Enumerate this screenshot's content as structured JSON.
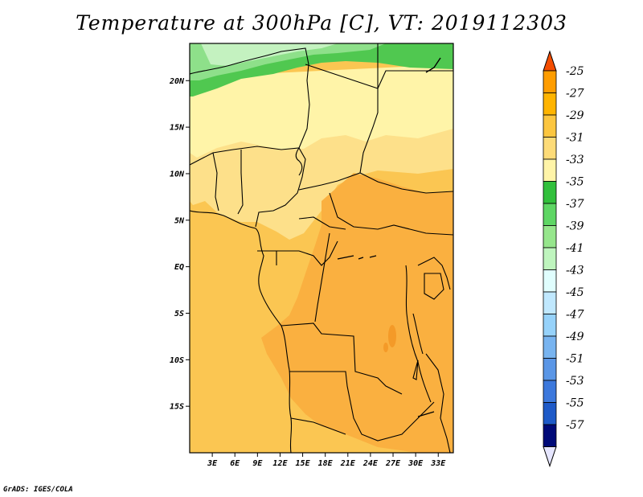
{
  "title": "Temperature at 300hPa [C], VT: 2019112303",
  "credit": "GrADS: IGES/COLA",
  "map": {
    "projection": "latlon",
    "lon_range": [
      0,
      35
    ],
    "lat_range": [
      -20,
      24
    ],
    "lat_ticks": [
      {
        "value": 20,
        "label": "20N"
      },
      {
        "value": 15,
        "label": "15N"
      },
      {
        "value": 10,
        "label": "10N"
      },
      {
        "value": 5,
        "label": "5N"
      },
      {
        "value": 0,
        "label": "EQ"
      },
      {
        "value": -5,
        "label": "5S"
      },
      {
        "value": -10,
        "label": "10S"
      },
      {
        "value": -15,
        "label": "15S"
      }
    ],
    "lon_ticks": [
      {
        "value": 3,
        "label": "3E"
      },
      {
        "value": 6,
        "label": "6E"
      },
      {
        "value": 9,
        "label": "9E"
      },
      {
        "value": 12,
        "label": "12E"
      },
      {
        "value": 15,
        "label": "15E"
      },
      {
        "value": 18,
        "label": "18E"
      },
      {
        "value": 21,
        "label": "21E"
      },
      {
        "value": 24,
        "label": "24E"
      },
      {
        "value": 27,
        "label": "27E"
      },
      {
        "value": 30,
        "label": "30E"
      },
      {
        "value": 33,
        "label": "33E"
      }
    ]
  },
  "colorbar": {
    "levels": [
      {
        "label": "-25",
        "color": "#ff9d00"
      },
      {
        "label": "-27",
        "color": "#ffb400"
      },
      {
        "label": "-29",
        "color": "#fcc640"
      },
      {
        "label": "-31",
        "color": "#fddb78"
      },
      {
        "label": "-33",
        "color": "#fff4a8"
      },
      {
        "label": "-35",
        "color": "#32c03c"
      },
      {
        "label": "-37",
        "color": "#5ed664"
      },
      {
        "label": "-39",
        "color": "#96e68c"
      },
      {
        "label": "-41",
        "color": "#bff5be"
      },
      {
        "label": "-43",
        "color": "#e0fefe"
      },
      {
        "label": "-45",
        "color": "#c0e8fe"
      },
      {
        "label": "-47",
        "color": "#96d2fa"
      },
      {
        "label": "-49",
        "color": "#78b4f0"
      },
      {
        "label": "-51",
        "color": "#5a96e6"
      },
      {
        "label": "-53",
        "color": "#3c78dc"
      },
      {
        "label": "-55",
        "color": "#1e5ac8"
      },
      {
        "label": "-57",
        "color": "#0a3296"
      }
    ],
    "top_cap_color": "#f44d00",
    "bottom_cap_color": "#e6e6ff",
    "bottom_dark_color": "#000a78"
  },
  "field_colors": {
    "c29": "#fab040",
    "c31": "#fbc652",
    "c33": "#fde08a",
    "c35": "#fff4a8",
    "g37": "#50c850",
    "g39": "#8ee08a",
    "g41": "#c4f2c0",
    "warm": "#f49a28"
  }
}
